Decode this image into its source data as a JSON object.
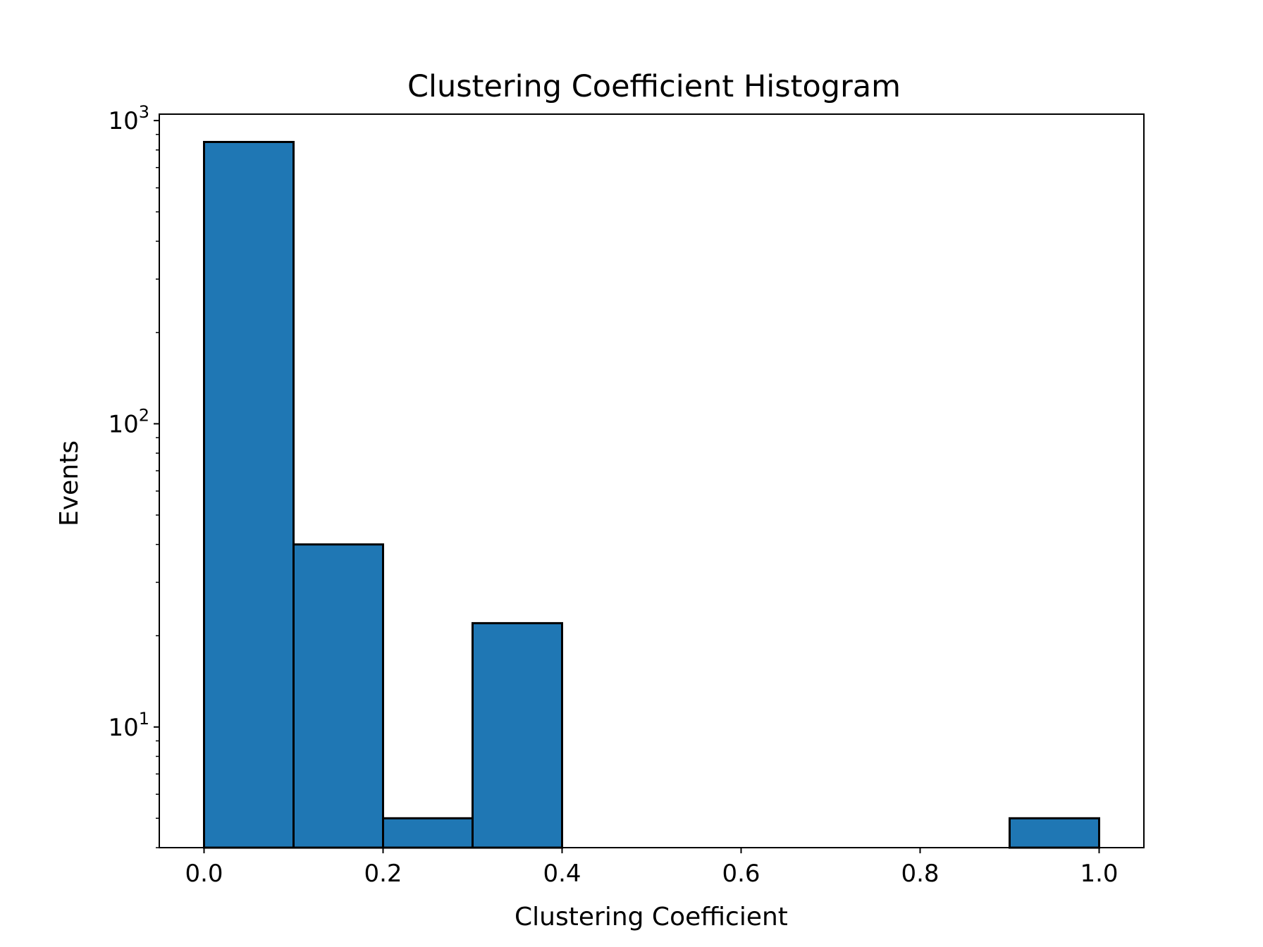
{
  "chart_data": {
    "type": "bar",
    "title": "Clustering Coefficient Histogram",
    "xlabel": "Clustering Coefficient",
    "ylabel": "Events",
    "xlim": [
      -0.05,
      1.05
    ],
    "ylim": [
      4,
      1050
    ],
    "yscale": "log",
    "grid": false,
    "bar_color": "#1f77b4",
    "edge_color": "#000000",
    "bins": [
      {
        "x0": 0.0,
        "x1": 0.1,
        "value": 850
      },
      {
        "x0": 0.1,
        "x1": 0.2,
        "value": 40
      },
      {
        "x0": 0.2,
        "x1": 0.3,
        "value": 5
      },
      {
        "x0": 0.3,
        "x1": 0.4,
        "value": 22
      },
      {
        "x0": 0.4,
        "x1": 0.5,
        "value": 0
      },
      {
        "x0": 0.5,
        "x1": 0.6,
        "value": 0
      },
      {
        "x0": 0.6,
        "x1": 0.7,
        "value": 0
      },
      {
        "x0": 0.7,
        "x1": 0.8,
        "value": 0
      },
      {
        "x0": 0.8,
        "x1": 0.9,
        "value": 0
      },
      {
        "x0": 0.9,
        "x1": 1.0,
        "value": 5
      }
    ],
    "x_ticks": [
      {
        "value": 0.0,
        "label": "0.0"
      },
      {
        "value": 0.2,
        "label": "0.2"
      },
      {
        "value": 0.4,
        "label": "0.4"
      },
      {
        "value": 0.6,
        "label": "0.6"
      },
      {
        "value": 0.8,
        "label": "0.8"
      },
      {
        "value": 1.0,
        "label": "1.0"
      }
    ],
    "y_ticks": [
      {
        "value": 10,
        "base": "10",
        "exp": "1"
      },
      {
        "value": 100,
        "base": "10",
        "exp": "2"
      },
      {
        "value": 1000,
        "base": "10",
        "exp": "3"
      }
    ]
  }
}
